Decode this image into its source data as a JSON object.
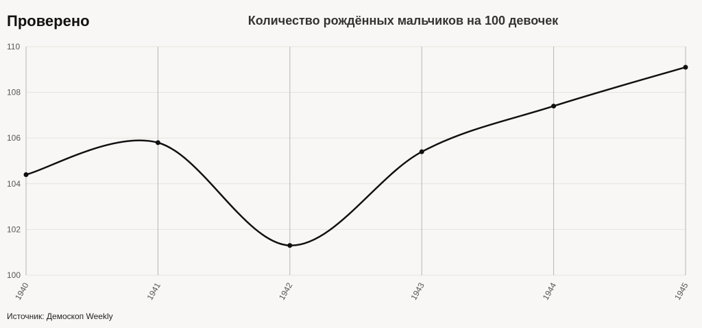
{
  "brand": "Проверено",
  "chart_data": {
    "type": "line",
    "title": "Количество рождённых мальчиков на 100 девочек",
    "source": "Источник: Демоскоп Weekly",
    "x": [
      1940,
      1941,
      1942,
      1943,
      1944,
      1945
    ],
    "values": [
      104.4,
      105.8,
      101.3,
      105.4,
      107.4,
      109.1
    ],
    "color": "#111111",
    "xlim": [
      1940,
      1945
    ],
    "xticks": [
      1940,
      1941,
      1942,
      1943,
      1944,
      1945
    ],
    "ylim": [
      100,
      110
    ],
    "yticks": [
      100,
      102,
      104,
      106,
      108,
      110
    ],
    "grid": true
  }
}
